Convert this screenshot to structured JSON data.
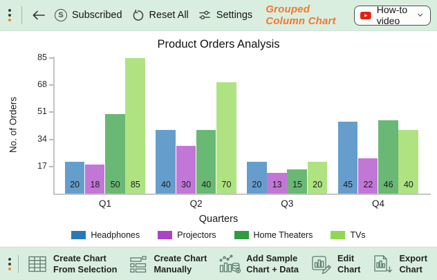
{
  "top_toolbar": {
    "subscribed_icon_letter": "S",
    "subscribed_label": "Subscribed",
    "reset_label": "Reset All",
    "settings_label": "Settings",
    "chart_type_label": "Grouped Column Chart",
    "video_button_label": "How-to video"
  },
  "chart_data": {
    "type": "bar",
    "title": "Product Orders Analysis",
    "xlabel": "Quarters",
    "ylabel": "No. of Orders",
    "categories": [
      "Q1",
      "Q2",
      "Q3",
      "Q4"
    ],
    "series": [
      {
        "name": "Headphones",
        "color": "#2979B8",
        "values": [
          20,
          40,
          20,
          45
        ]
      },
      {
        "name": "Projectors",
        "color": "#AA43C8",
        "values": [
          18,
          30,
          13,
          22
        ]
      },
      {
        "name": "Home Theaters",
        "color": "#2F9C3F",
        "values": [
          50,
          40,
          15,
          46
        ]
      },
      {
        "name": "TVs",
        "color": "#90D852",
        "values": [
          85,
          70,
          20,
          40
        ]
      }
    ],
    "yticks": [
      17,
      34,
      51,
      68,
      85
    ],
    "ylim": [
      0,
      85
    ],
    "bar_opacity": 0.72,
    "grid": false,
    "legend_position": "bottom",
    "data_labels": "inside-base"
  },
  "bottom_toolbar": {
    "items": [
      {
        "line1": "Create Chart",
        "line2": "From Selection",
        "icon": "table-grid-icon"
      },
      {
        "line1": "Create Chart",
        "line2": "Manually",
        "icon": "form-icon"
      },
      {
        "line1": "Add Sample",
        "line2": "Chart + Data",
        "icon": "sample-chart-icon"
      },
      {
        "line1": "Edit",
        "line2": "Chart",
        "icon": "edit-chart-icon"
      },
      {
        "line1": "Export",
        "line2": "Chart",
        "icon": "export-chart-icon"
      }
    ]
  },
  "colors": {
    "toolbar_bg": "#DAEEDF",
    "accent_orange": "#F5772D",
    "youtube_red": "#E32212",
    "axis_gray": "#C4C4C4",
    "chart_bg": "#FFFFFF"
  }
}
